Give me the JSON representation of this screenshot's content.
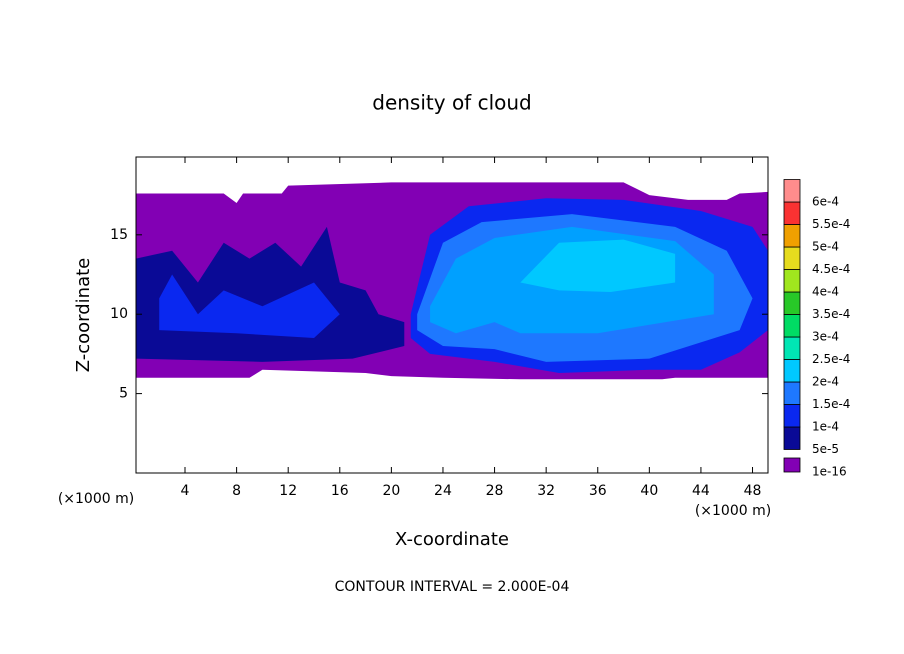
{
  "chart_data": {
    "type": "contour",
    "title": "density of cloud",
    "xlabel": "X-coordinate",
    "ylabel": "Z-coordinate",
    "x_unit": "(×1000 m)",
    "y_unit": "(×1000 m)",
    "annotation": "CONTOUR INTERVAL = 2.000E-04",
    "xlim": [
      0.2,
      49.2
    ],
    "ylim": [
      0,
      19.9
    ],
    "xticks": [
      4,
      8,
      12,
      16,
      20,
      24,
      28,
      32,
      36,
      40,
      44,
      48
    ],
    "yticks": [
      5,
      10,
      15
    ],
    "colorbar": {
      "levels": [
        {
          "value": 1e-16,
          "label": "1e-16"
        },
        {
          "value": 5e-05,
          "label": "5e-5"
        },
        {
          "value": 0.0001,
          "label": "1e-4"
        },
        {
          "value": 0.00015,
          "label": "1.5e-4"
        },
        {
          "value": 0.0002,
          "label": "2e-4"
        },
        {
          "value": 0.00025,
          "label": "2.5e-4"
        },
        {
          "value": 0.0003,
          "label": "3e-4"
        },
        {
          "value": 0.00035,
          "label": "3.5e-4"
        },
        {
          "value": 0.0004,
          "label": "4e-4"
        },
        {
          "value": 0.00045,
          "label": "4.5e-4"
        },
        {
          "value": 0.0005,
          "label": "5e-4"
        },
        {
          "value": 0.00055,
          "label": "5.5e-4"
        },
        {
          "value": 0.0006,
          "label": "6e-4"
        }
      ],
      "colors": [
        "#8200b4",
        "#0a0a96",
        "#0a28f0",
        "#1e78ff",
        "#00c8ff",
        "#00e6b4",
        "#00dc64",
        "#28c828",
        "#a0e61e",
        "#e6dc1e",
        "#f0a000",
        "#fa3232",
        "#ff8c8c"
      ]
    },
    "contours": [
      {
        "color": "#8200b4",
        "x": [
          0.2,
          7,
          8,
          8.5,
          11.5,
          12,
          20,
          38,
          40,
          43,
          46,
          47,
          49.2,
          49.2,
          42,
          41,
          30,
          24,
          20,
          18,
          10,
          9,
          0.2
        ],
        "z": [
          17.6,
          17.6,
          17,
          17.6,
          17.6,
          18.1,
          18.3,
          18.3,
          17.5,
          17.2,
          17.2,
          17.6,
          17.7,
          6,
          6,
          5.9,
          5.9,
          6,
          6.1,
          6.3,
          6.5,
          6,
          6
        ]
      },
      {
        "color": "#0a0a96",
        "x": [
          0.2,
          3,
          5,
          7,
          9,
          11,
          13,
          15,
          16,
          18,
          19,
          21,
          21,
          17,
          10,
          0.2
        ],
        "z": [
          13.5,
          14,
          12,
          14.5,
          13.5,
          14.5,
          13,
          15.5,
          12,
          11.5,
          10,
          9.5,
          8,
          7.2,
          7,
          7.2
        ]
      },
      {
        "color": "#0a28f0",
        "x": [
          2,
          3,
          5,
          7,
          10,
          14,
          16,
          14,
          8,
          2
        ],
        "z": [
          11,
          12.5,
          10,
          11.5,
          10.5,
          12,
          10,
          8.5,
          8.8,
          9
        ]
      },
      {
        "color": "#0a28f0",
        "x": [
          21.5,
          23,
          26,
          32,
          38,
          44,
          48,
          49.2,
          49.2,
          47,
          44,
          40,
          33,
          28,
          23,
          21.5
        ],
        "z": [
          10,
          15,
          16.8,
          17.3,
          17.2,
          16.5,
          15.5,
          14,
          9,
          7.6,
          6.5,
          6.5,
          6.3,
          7,
          7.5,
          8.5
        ]
      },
      {
        "color": "#1e78ff",
        "x": [
          22,
          24,
          27,
          34,
          42,
          46,
          48,
          47,
          40,
          32,
          28,
          24,
          22
        ],
        "z": [
          10,
          14.5,
          15.8,
          16.3,
          15.5,
          14,
          11,
          9,
          7.2,
          7,
          7.8,
          8,
          9
        ]
      },
      {
        "color": "#00a0ff",
        "x": [
          23,
          25,
          28,
          34,
          42,
          45,
          45,
          36,
          30,
          28,
          25,
          23
        ],
        "z": [
          10.5,
          13.5,
          14.8,
          15.5,
          14.6,
          12.5,
          10,
          8.8,
          8.8,
          9.5,
          8.8,
          9.5
        ]
      },
      {
        "color": "#00c8ff",
        "x": [
          30,
          33,
          38,
          42,
          42,
          37,
          33
        ],
        "z": [
          12,
          14.5,
          14.7,
          13.8,
          12,
          11.4,
          11.5
        ]
      }
    ]
  }
}
